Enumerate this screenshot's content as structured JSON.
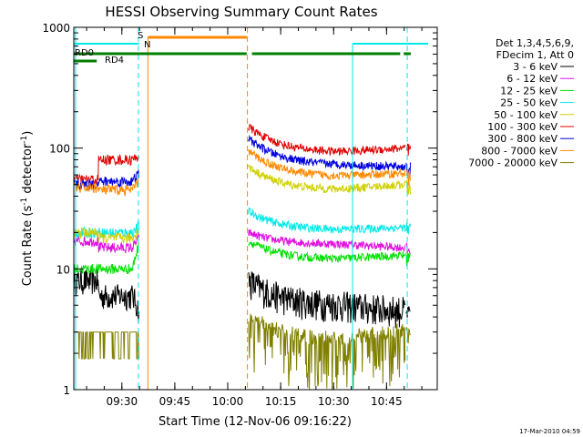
{
  "chart_data": {
    "type": "line",
    "title": "HESSI Observing Summary Count Rates",
    "xlabel": "Start Time (12-Nov-06 09:16:22)",
    "ylabel_main": "Count Rate (s",
    "ylabel_sup1": "-1",
    "ylabel_mid": " detector",
    "ylabel_sup2": "-1",
    "ylabel_end": ")",
    "y_scale": "log",
    "ylim": [
      1,
      1000
    ],
    "x_units": "minutes since 09:16:22",
    "xlim": [
      0,
      103
    ],
    "x_ticks": [
      {
        "t": 13.63,
        "label": "09:30"
      },
      {
        "t": 28.63,
        "label": "09:45"
      },
      {
        "t": 43.63,
        "label": "10:00"
      },
      {
        "t": 58.63,
        "label": "10:15"
      },
      {
        "t": 73.63,
        "label": "10:30"
      },
      {
        "t": 88.63,
        "label": "10:45"
      }
    ],
    "y_ticks": [
      {
        "v": 1,
        "label": "1"
      },
      {
        "v": 10,
        "label": "10"
      },
      {
        "v": 100,
        "label": "100"
      },
      {
        "v": 1000,
        "label": "1000"
      }
    ],
    "legend_header": [
      "Det 1,3,4,5,6,9,",
      "FDecim 1, Att 0"
    ],
    "legend_position": "right",
    "series": [
      {
        "name": "3 - 6 keV",
        "color": "#000000",
        "pre": [
          8,
          6,
          5.5
        ],
        "post": [
          8,
          5,
          4.5
        ]
      },
      {
        "name": "6 - 12 keV",
        "color": "#e010e0",
        "pre": [
          17,
          15,
          16
        ],
        "post": [
          20,
          16,
          15
        ]
      },
      {
        "name": "12 - 25 keV",
        "color": "#00e000",
        "pre": [
          10,
          10,
          12
        ],
        "post": [
          17,
          12,
          13
        ]
      },
      {
        "name": "25 - 50 keV",
        "color": "#00e8e8",
        "pre": [
          20,
          20,
          21
        ],
        "post": [
          30,
          21,
          22
        ]
      },
      {
        "name": "50 - 100 keV",
        "color": "#d0d000",
        "pre": [
          20,
          18,
          19
        ],
        "post": [
          70,
          45,
          50
        ]
      },
      {
        "name": "100 - 300 keV",
        "color": "#e00000",
        "pre": [
          55,
          80,
          82
        ],
        "post": [
          150,
          92,
          100
        ]
      },
      {
        "name": "300 - 800 keV",
        "color": "#0000e0",
        "pre": [
          50,
          53,
          56
        ],
        "post": [
          120,
          72,
          70
        ]
      },
      {
        "name": "800 - 7000 keV",
        "color": "#ff8800",
        "pre": [
          47,
          45,
          48
        ],
        "post": [
          95,
          58,
          62
        ]
      },
      {
        "name": "7000 - 20000 keV",
        "color": "#808000",
        "pre": [
          3,
          3,
          3
        ],
        "post": [
          4,
          2.5,
          3
        ]
      }
    ],
    "flags": [
      {
        "label": "S",
        "color": "#ff8800"
      },
      {
        "label": "N",
        "color": "#00e8e8"
      },
      {
        "label": "RD0",
        "color": "#008000"
      },
      {
        "label": "RD4",
        "color": "#008000"
      }
    ]
  },
  "footer_stamp": "17-Mar-2010 04:59"
}
